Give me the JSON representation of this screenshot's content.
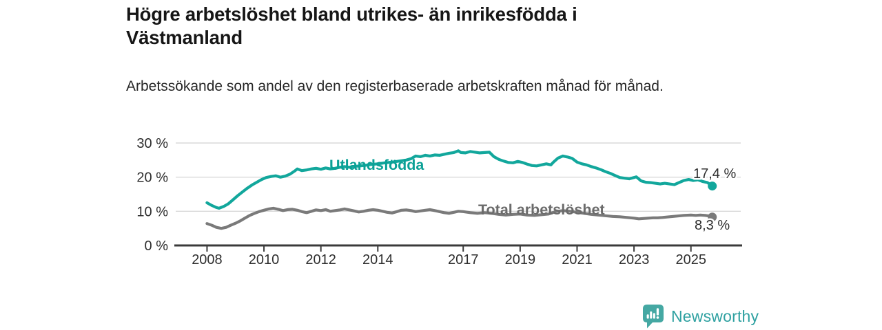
{
  "header": {
    "title": "Högre arbetslöshet bland utrikes- än inrikesfödda i Västmanland",
    "subtitle": "Arbetssökande som andel av den registerbaserade arbetskraften månad för månad."
  },
  "chart_data": {
    "type": "line",
    "title": "Högre arbetslöshet bland utrikes- än inrikesfödda i Västmanland",
    "xlabel": "",
    "ylabel": "",
    "x_unit": "decimal_year",
    "xlim": [
      2006.9,
      2026.75
    ],
    "ylim": [
      0,
      30
    ],
    "grid": "horizontal",
    "grid_color": "#d9d9d9",
    "axis_color": "#3a3a3a",
    "tick_label_color": "#2e2e2e",
    "x_ticks": [
      2008,
      2010,
      2012,
      2014,
      2017,
      2019,
      2021,
      2023,
      2025
    ],
    "y_ticks": [
      {
        "value": 0,
        "label": "0 %"
      },
      {
        "value": 10,
        "label": "10 %"
      },
      {
        "value": 20,
        "label": "20 %"
      },
      {
        "value": 30,
        "label": "30 %"
      }
    ],
    "series": [
      {
        "name": "Utlandsfödda",
        "color": "#12a79c",
        "label_color": "#0ba096",
        "end_label": "17,4 %",
        "end_value": 17.4,
        "points": [
          [
            2008.0,
            12.5
          ],
          [
            2008.17,
            11.7
          ],
          [
            2008.33,
            11.1
          ],
          [
            2008.42,
            10.9
          ],
          [
            2008.58,
            11.4
          ],
          [
            2008.75,
            12.2
          ],
          [
            2008.92,
            13.4
          ],
          [
            2009.08,
            14.6
          ],
          [
            2009.25,
            15.7
          ],
          [
            2009.42,
            16.8
          ],
          [
            2009.58,
            17.7
          ],
          [
            2009.75,
            18.5
          ],
          [
            2009.92,
            19.3
          ],
          [
            2010.08,
            19.9
          ],
          [
            2010.25,
            20.2
          ],
          [
            2010.42,
            20.4
          ],
          [
            2010.58,
            20.0
          ],
          [
            2010.75,
            20.3
          ],
          [
            2010.92,
            20.9
          ],
          [
            2011.08,
            21.8
          ],
          [
            2011.17,
            22.4
          ],
          [
            2011.33,
            21.9
          ],
          [
            2011.5,
            22.1
          ],
          [
            2011.67,
            22.4
          ],
          [
            2011.83,
            22.6
          ],
          [
            2012.0,
            22.3
          ],
          [
            2012.17,
            22.7
          ],
          [
            2012.33,
            22.4
          ],
          [
            2012.5,
            22.6
          ],
          [
            2012.67,
            22.9
          ],
          [
            2012.83,
            23.1
          ],
          [
            2013.0,
            22.9
          ],
          [
            2013.25,
            23.2
          ],
          [
            2013.5,
            23.4
          ],
          [
            2013.75,
            23.7
          ],
          [
            2014.0,
            23.9
          ],
          [
            2014.25,
            24.2
          ],
          [
            2014.5,
            24.4
          ],
          [
            2014.75,
            24.7
          ],
          [
            2015.0,
            25.0
          ],
          [
            2015.17,
            25.4
          ],
          [
            2015.33,
            26.2
          ],
          [
            2015.5,
            26.0
          ],
          [
            2015.67,
            26.4
          ],
          [
            2015.83,
            26.2
          ],
          [
            2016.0,
            26.5
          ],
          [
            2016.17,
            26.4
          ],
          [
            2016.33,
            26.7
          ],
          [
            2016.5,
            27.0
          ],
          [
            2016.67,
            27.2
          ],
          [
            2016.83,
            27.7
          ],
          [
            2016.92,
            27.2
          ],
          [
            2017.08,
            27.1
          ],
          [
            2017.25,
            27.5
          ],
          [
            2017.42,
            27.3
          ],
          [
            2017.58,
            27.1
          ],
          [
            2017.75,
            27.2
          ],
          [
            2017.92,
            27.3
          ],
          [
            2018.08,
            26.0
          ],
          [
            2018.25,
            25.2
          ],
          [
            2018.42,
            24.7
          ],
          [
            2018.58,
            24.3
          ],
          [
            2018.75,
            24.2
          ],
          [
            2018.92,
            24.6
          ],
          [
            2019.08,
            24.3
          ],
          [
            2019.25,
            23.8
          ],
          [
            2019.42,
            23.4
          ],
          [
            2019.58,
            23.3
          ],
          [
            2019.75,
            23.6
          ],
          [
            2019.92,
            23.9
          ],
          [
            2020.08,
            23.6
          ],
          [
            2020.17,
            24.4
          ],
          [
            2020.33,
            25.6
          ],
          [
            2020.5,
            26.2
          ],
          [
            2020.67,
            25.9
          ],
          [
            2020.83,
            25.5
          ],
          [
            2021.0,
            24.4
          ],
          [
            2021.17,
            23.9
          ],
          [
            2021.33,
            23.6
          ],
          [
            2021.5,
            23.1
          ],
          [
            2021.67,
            22.7
          ],
          [
            2021.83,
            22.2
          ],
          [
            2022.0,
            21.6
          ],
          [
            2022.17,
            21.1
          ],
          [
            2022.33,
            20.5
          ],
          [
            2022.5,
            19.9
          ],
          [
            2022.67,
            19.7
          ],
          [
            2022.83,
            19.5
          ],
          [
            2023.0,
            19.9
          ],
          [
            2023.08,
            20.1
          ],
          [
            2023.25,
            18.9
          ],
          [
            2023.42,
            18.5
          ],
          [
            2023.58,
            18.4
          ],
          [
            2023.75,
            18.2
          ],
          [
            2023.92,
            18.0
          ],
          [
            2024.08,
            18.2
          ],
          [
            2024.25,
            18.0
          ],
          [
            2024.42,
            17.8
          ],
          [
            2024.58,
            18.4
          ],
          [
            2024.75,
            19.0
          ],
          [
            2024.92,
            19.3
          ],
          [
            2025.08,
            19.0
          ],
          [
            2025.25,
            19.2
          ],
          [
            2025.42,
            18.7
          ],
          [
            2025.58,
            18.4
          ],
          [
            2025.67,
            17.9
          ],
          [
            2025.75,
            17.4
          ]
        ]
      },
      {
        "name": "Total arbetslöshet",
        "color": "#7a7a7a",
        "label_color": "#6b6b6b",
        "end_label": "8,3 %",
        "end_value": 8.3,
        "points": [
          [
            2008.0,
            6.4
          ],
          [
            2008.17,
            5.9
          ],
          [
            2008.33,
            5.3
          ],
          [
            2008.5,
            5.0
          ],
          [
            2008.67,
            5.3
          ],
          [
            2008.83,
            5.9
          ],
          [
            2009.0,
            6.5
          ],
          [
            2009.17,
            7.2
          ],
          [
            2009.33,
            8.0
          ],
          [
            2009.5,
            8.8
          ],
          [
            2009.67,
            9.4
          ],
          [
            2009.83,
            9.9
          ],
          [
            2010.0,
            10.3
          ],
          [
            2010.17,
            10.7
          ],
          [
            2010.33,
            10.9
          ],
          [
            2010.5,
            10.6
          ],
          [
            2010.67,
            10.2
          ],
          [
            2010.83,
            10.5
          ],
          [
            2011.0,
            10.6
          ],
          [
            2011.17,
            10.3
          ],
          [
            2011.33,
            9.9
          ],
          [
            2011.5,
            9.6
          ],
          [
            2011.67,
            10.0
          ],
          [
            2011.83,
            10.4
          ],
          [
            2012.0,
            10.2
          ],
          [
            2012.17,
            10.5
          ],
          [
            2012.33,
            10.0
          ],
          [
            2012.5,
            10.2
          ],
          [
            2012.67,
            10.4
          ],
          [
            2012.83,
            10.7
          ],
          [
            2013.0,
            10.4
          ],
          [
            2013.17,
            10.1
          ],
          [
            2013.33,
            9.8
          ],
          [
            2013.5,
            10.0
          ],
          [
            2013.67,
            10.3
          ],
          [
            2013.83,
            10.5
          ],
          [
            2014.0,
            10.3
          ],
          [
            2014.17,
            10.0
          ],
          [
            2014.33,
            9.7
          ],
          [
            2014.5,
            9.5
          ],
          [
            2014.67,
            9.9
          ],
          [
            2014.83,
            10.3
          ],
          [
            2015.0,
            10.4
          ],
          [
            2015.17,
            10.2
          ],
          [
            2015.33,
            9.9
          ],
          [
            2015.5,
            10.1
          ],
          [
            2015.67,
            10.3
          ],
          [
            2015.83,
            10.5
          ],
          [
            2016.0,
            10.2
          ],
          [
            2016.17,
            9.9
          ],
          [
            2016.33,
            9.6
          ],
          [
            2016.5,
            9.4
          ],
          [
            2016.67,
            9.7
          ],
          [
            2016.83,
            10.0
          ],
          [
            2017.0,
            9.9
          ],
          [
            2017.25,
            9.6
          ],
          [
            2017.5,
            9.4
          ],
          [
            2017.75,
            9.6
          ],
          [
            2018.0,
            9.4
          ],
          [
            2018.25,
            9.1
          ],
          [
            2018.5,
            8.9
          ],
          [
            2018.75,
            9.1
          ],
          [
            2019.0,
            9.2
          ],
          [
            2019.25,
            8.9
          ],
          [
            2019.5,
            8.8
          ],
          [
            2019.75,
            9.0
          ],
          [
            2020.0,
            9.2
          ],
          [
            2020.25,
            9.9
          ],
          [
            2020.5,
            10.2
          ],
          [
            2020.75,
            10.0
          ],
          [
            2021.0,
            9.7
          ],
          [
            2021.25,
            9.4
          ],
          [
            2021.5,
            9.1
          ],
          [
            2021.75,
            8.9
          ],
          [
            2022.0,
            8.7
          ],
          [
            2022.25,
            8.5
          ],
          [
            2022.5,
            8.4
          ],
          [
            2022.75,
            8.2
          ],
          [
            2023.0,
            8.0
          ],
          [
            2023.17,
            7.8
          ],
          [
            2023.33,
            7.9
          ],
          [
            2023.5,
            8.0
          ],
          [
            2023.67,
            8.1
          ],
          [
            2023.83,
            8.1
          ],
          [
            2024.0,
            8.2
          ],
          [
            2024.25,
            8.4
          ],
          [
            2024.5,
            8.6
          ],
          [
            2024.75,
            8.8
          ],
          [
            2025.0,
            8.9
          ],
          [
            2025.17,
            8.8
          ],
          [
            2025.33,
            8.9
          ],
          [
            2025.5,
            8.8
          ],
          [
            2025.67,
            8.6
          ],
          [
            2025.75,
            8.3
          ]
        ]
      }
    ],
    "annotations": {
      "end_label_color": "#2d2d2d"
    }
  },
  "footer": {
    "brand": "Newsworthy",
    "brand_color": "#2fa1a1",
    "logo_color": "#45a8a3",
    "logo_icon": "bar-chart-speech-bubble"
  }
}
